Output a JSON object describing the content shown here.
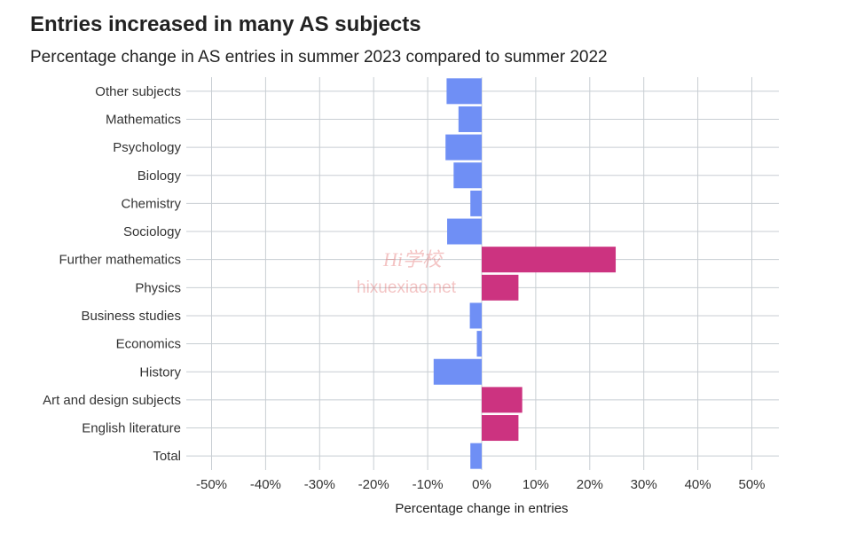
{
  "title": "Entries increased in many AS subjects",
  "subtitle": "Percentage change in AS entries in summer 2023 compared to summer 2022",
  "watermark": {
    "logo_text": "Hi学校",
    "url_text": "hixuexiao.net"
  },
  "colors": {
    "negative": "#6f8ff5",
    "positive": "#cc3380",
    "grid": "#c8ced3"
  },
  "chart_data": {
    "type": "bar",
    "orientation": "horizontal",
    "xlabel": "Percentage change in entries",
    "xlim": [
      -55,
      55
    ],
    "xticks": [
      -50,
      -40,
      -30,
      -20,
      -10,
      0,
      10,
      20,
      30,
      40,
      50
    ],
    "xtick_labels": [
      "-50%",
      "-40%",
      "-30%",
      "-20%",
      "-10%",
      "0%",
      "10%",
      "20%",
      "30%",
      "40%",
      "50%"
    ],
    "categories": [
      "Other subjects",
      "Mathematics",
      "Psychology",
      "Biology",
      "Chemistry",
      "Sociology",
      "Further mathematics",
      "Physics",
      "Business studies",
      "Economics",
      "History",
      "Art and design subjects",
      "English literature",
      "Total"
    ],
    "values": [
      -6.5,
      -4.3,
      -6.7,
      -5.2,
      -2.1,
      -6.4,
      24.8,
      6.8,
      -2.2,
      -0.9,
      -8.9,
      7.5,
      6.8,
      -2.1
    ],
    "grid": true
  }
}
